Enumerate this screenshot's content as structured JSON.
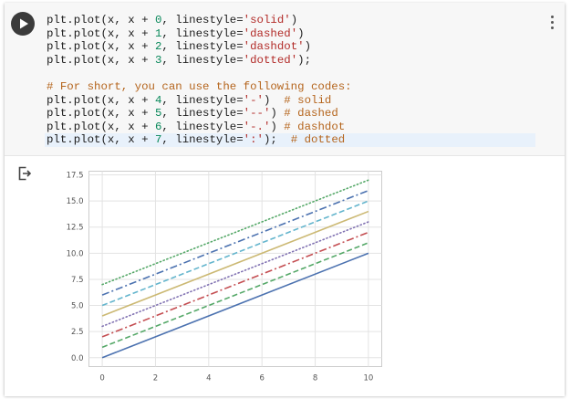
{
  "notebook": {
    "run_icon": "play-icon",
    "menu_icon": "more-vert-icon",
    "output_icon": "output-exit-icon"
  },
  "code_lines": [
    [
      {
        "t": "plt.plot(x, x + "
      },
      {
        "t": "0",
        "k": "n"
      },
      {
        "t": ", linestyle="
      },
      {
        "t": "'solid'",
        "k": "s"
      },
      {
        "t": ")"
      }
    ],
    [
      {
        "t": "plt.plot(x, x + "
      },
      {
        "t": "1",
        "k": "n"
      },
      {
        "t": ", linestyle="
      },
      {
        "t": "'dashed'",
        "k": "s"
      },
      {
        "t": ")"
      }
    ],
    [
      {
        "t": "plt.plot(x, x + "
      },
      {
        "t": "2",
        "k": "n"
      },
      {
        "t": ", linestyle="
      },
      {
        "t": "'dashdot'",
        "k": "s"
      },
      {
        "t": ")"
      }
    ],
    [
      {
        "t": "plt.plot(x, x + "
      },
      {
        "t": "3",
        "k": "n"
      },
      {
        "t": ", linestyle="
      },
      {
        "t": "'dotted'",
        "k": "s"
      },
      {
        "t": ");"
      }
    ],
    [],
    [
      {
        "t": "# For short, you can use the following codes:",
        "k": "c"
      }
    ],
    [
      {
        "t": "plt.plot(x, x + "
      },
      {
        "t": "4",
        "k": "n"
      },
      {
        "t": ", linestyle="
      },
      {
        "t": "'-'",
        "k": "s"
      },
      {
        "t": ")  "
      },
      {
        "t": "# solid",
        "k": "c"
      }
    ],
    [
      {
        "t": "plt.plot(x, x + "
      },
      {
        "t": "5",
        "k": "n"
      },
      {
        "t": ", linestyle="
      },
      {
        "t": "'--'",
        "k": "s"
      },
      {
        "t": ") "
      },
      {
        "t": "# dashed",
        "k": "c"
      }
    ],
    [
      {
        "t": "plt.plot(x, x + "
      },
      {
        "t": "6",
        "k": "n"
      },
      {
        "t": ", linestyle="
      },
      {
        "t": "'-.'",
        "k": "s"
      },
      {
        "t": ") "
      },
      {
        "t": "# dashdot",
        "k": "c"
      }
    ],
    [
      {
        "t": "plt.plot(x, x + "
      },
      {
        "t": "7",
        "k": "n"
      },
      {
        "t": ", linestyle="
      },
      {
        "t": "':'",
        "k": "s"
      },
      {
        "t": ");  "
      },
      {
        "t": "# dotted",
        "k": "c"
      }
    ]
  ],
  "chart_data": {
    "type": "line",
    "x": [
      0,
      10
    ],
    "xlim": [
      -0.5,
      10.5
    ],
    "ylim": [
      -0.85,
      17.85
    ],
    "xticks": [
      "0",
      "2",
      "4",
      "6",
      "8",
      "10"
    ],
    "yticks": [
      "0.0",
      "2.5",
      "5.0",
      "7.5",
      "10.0",
      "12.5",
      "15.0",
      "17.5"
    ],
    "grid": true,
    "series": [
      {
        "values": [
          0,
          10
        ],
        "linestyle": "solid",
        "color": "#4c72b0"
      },
      {
        "values": [
          1,
          11
        ],
        "linestyle": "dashed",
        "color": "#55a868"
      },
      {
        "values": [
          2,
          12
        ],
        "linestyle": "dashdot",
        "color": "#c44e52"
      },
      {
        "values": [
          3,
          13
        ],
        "linestyle": "dotted",
        "color": "#8172b2"
      },
      {
        "values": [
          4,
          14
        ],
        "linestyle": "solid",
        "color": "#ccb974"
      },
      {
        "values": [
          5,
          15
        ],
        "linestyle": "dashed",
        "color": "#64b5cd"
      },
      {
        "values": [
          6,
          16
        ],
        "linestyle": "dashdot",
        "color": "#4c72b0"
      },
      {
        "values": [
          7,
          17
        ],
        "linestyle": "dotted",
        "color": "#55a868"
      }
    ]
  }
}
